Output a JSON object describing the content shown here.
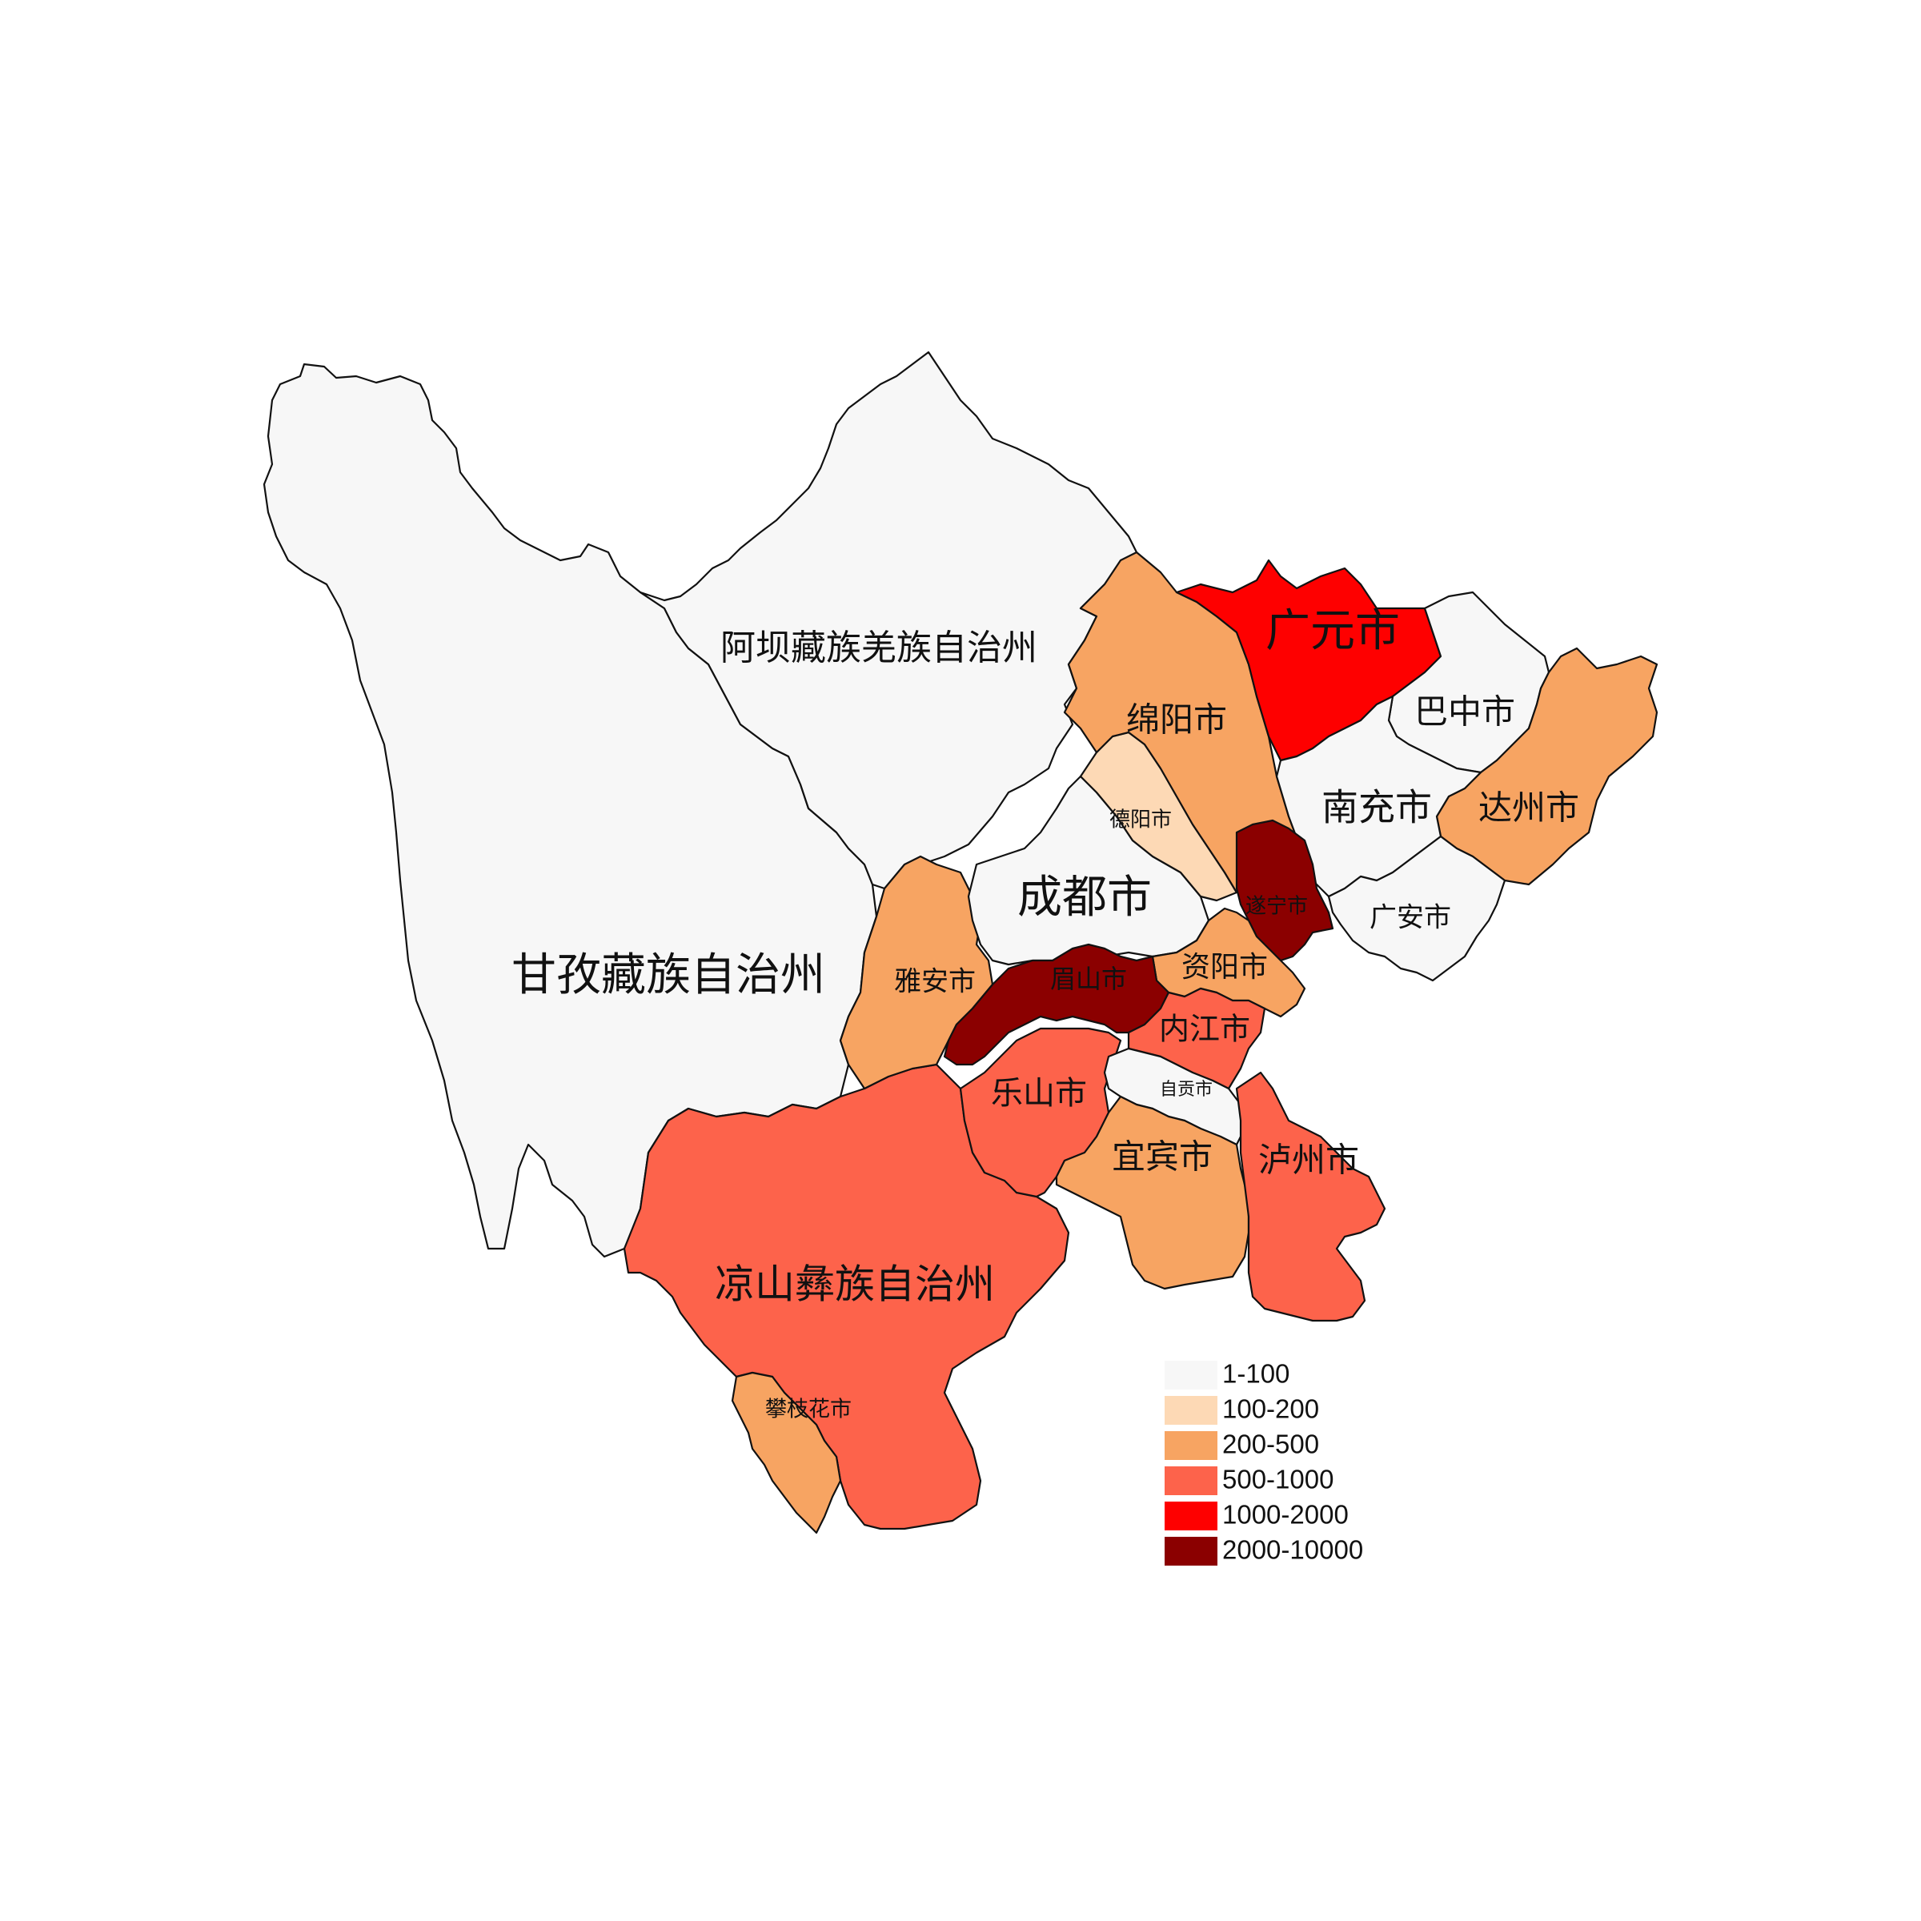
{
  "legend": [
    {
      "label": "1-100",
      "color": "#f7f7f7"
    },
    {
      "label": "100-200",
      "color": "#fdd9b5"
    },
    {
      "label": "200-500",
      "color": "#f7a462"
    },
    {
      "label": "500-1000",
      "color": "#fd634b"
    },
    {
      "label": "1000-2000",
      "color": "#fe0000"
    },
    {
      "label": "2000-10000",
      "color": "#8b0000"
    }
  ],
  "regions": [
    {
      "id": "ganzi",
      "label": "甘孜藏族自治州",
      "class": "1-100"
    },
    {
      "id": "aba",
      "label": "阿坝藏族羌族自治州",
      "class": "1-100"
    },
    {
      "id": "liangshan",
      "label": "凉山彝族自治州",
      "class": "500-1000"
    },
    {
      "id": "panzhihua",
      "label": "攀枝花市",
      "class": "200-500"
    },
    {
      "id": "guangyuan",
      "label": "广元市",
      "class": "1000-2000"
    },
    {
      "id": "bazhong",
      "label": "巴中市",
      "class": "1-100"
    },
    {
      "id": "dazhou",
      "label": "达州市",
      "class": "200-500"
    },
    {
      "id": "mianyang",
      "label": "绵阳市",
      "class": "200-500"
    },
    {
      "id": "nanchong",
      "label": "南充市",
      "class": "1-100"
    },
    {
      "id": "deyang",
      "label": "德阳市",
      "class": "100-200"
    },
    {
      "id": "chengdu",
      "label": "成都市",
      "class": "1-100"
    },
    {
      "id": "suining",
      "label": "遂宁市",
      "class": "2000-10000"
    },
    {
      "id": "guangan",
      "label": "广安市",
      "class": "1-100"
    },
    {
      "id": "yaan",
      "label": "雅安市",
      "class": "200-500"
    },
    {
      "id": "meishan",
      "label": "眉山市",
      "class": "2000-10000"
    },
    {
      "id": "ziyang",
      "label": "资阳市",
      "class": "200-500"
    },
    {
      "id": "neijiang",
      "label": "内江市",
      "class": "500-1000"
    },
    {
      "id": "leshan",
      "label": "乐山市",
      "class": "500-1000"
    },
    {
      "id": "zigong",
      "label": "自贡市",
      "class": "1-100"
    },
    {
      "id": "yibin",
      "label": "宜宾市",
      "class": "200-500"
    },
    {
      "id": "luzhou",
      "label": "泸州市",
      "class": "500-1000"
    }
  ]
}
